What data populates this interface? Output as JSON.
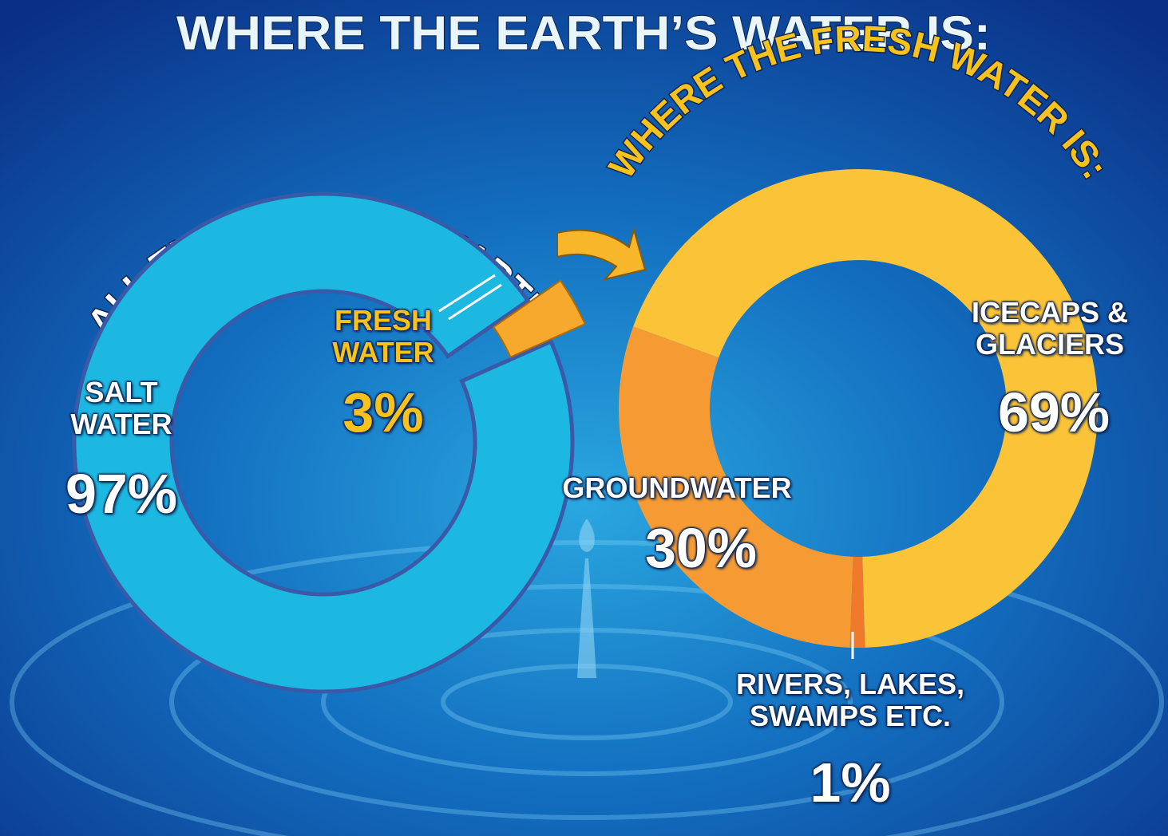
{
  "title": "WHERE THE EARTH’S WATER IS:",
  "chart_data": [
    {
      "type": "donut",
      "title": "ALL THE WATER ON EARTH:",
      "categories": [
        "SALT WATER",
        "FRESH WATER"
      ],
      "values": [
        97,
        3
      ],
      "value_labels": [
        "97%",
        "3%"
      ],
      "colors": [
        "#1cb8e2",
        "#f6a92c"
      ]
    },
    {
      "type": "donut",
      "title": "WHERE THE FRESH WATER IS:",
      "categories": [
        "ICECAPS & GLACIERS",
        "RIVERS, LAKES, SWAMPS ETC.",
        "GROUNDWATER"
      ],
      "values": [
        69,
        1,
        30
      ],
      "value_labels": [
        "69%",
        "1%",
        "30%"
      ],
      "colors": [
        "#fbc338",
        "#ef7a2b",
        "#f69b33"
      ]
    }
  ]
}
